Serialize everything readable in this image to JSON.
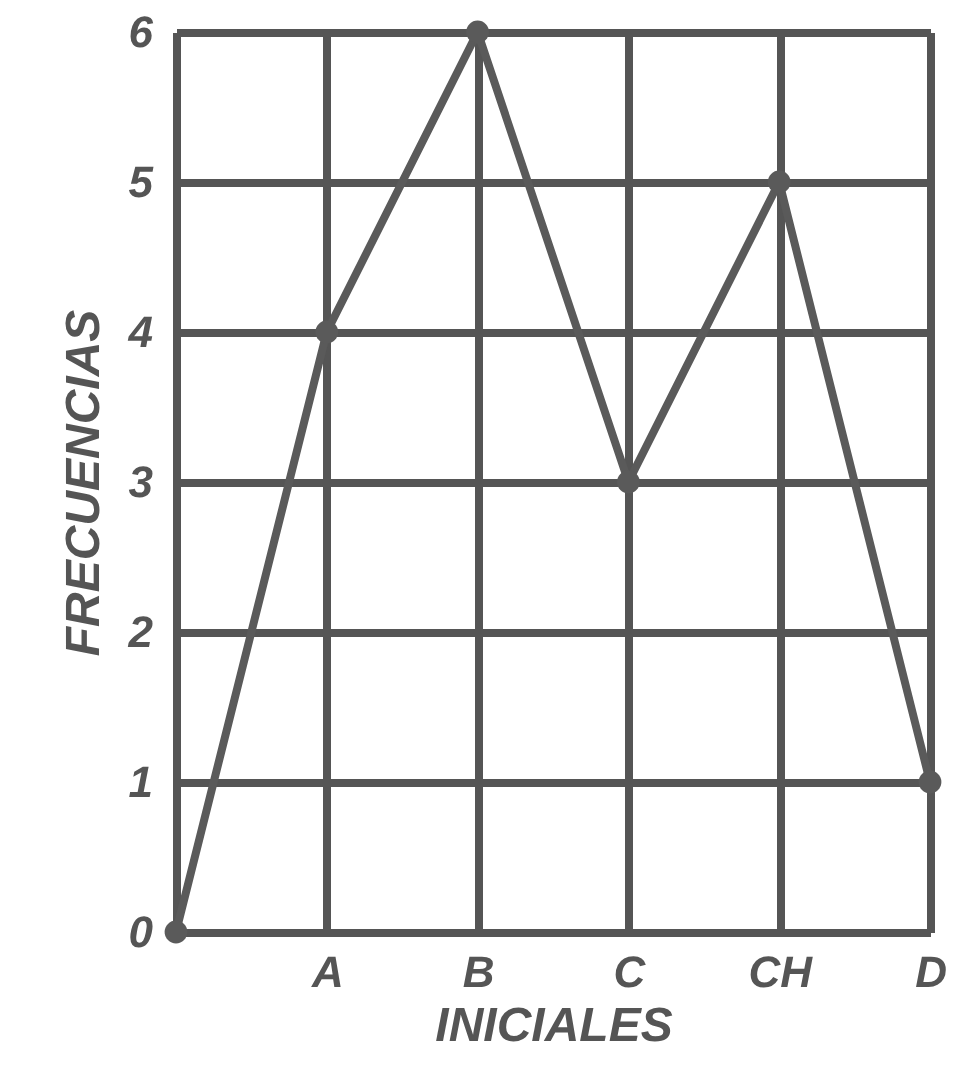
{
  "chart_data": {
    "type": "line",
    "xlabel": "INICIALES",
    "ylabel": "FRECUENCIAS",
    "categories": [
      null,
      "A",
      "B",
      "C",
      "CH",
      "D"
    ],
    "series": [
      {
        "color": "#5a5a5a",
        "values": [
          0,
          4,
          6,
          3,
          5,
          1
        ]
      }
    ],
    "ylim": [
      0,
      6
    ],
    "yticks": [
      0,
      1,
      2,
      3,
      4,
      5,
      6
    ],
    "grid": true,
    "marker": "circle",
    "line_style": "solid"
  }
}
